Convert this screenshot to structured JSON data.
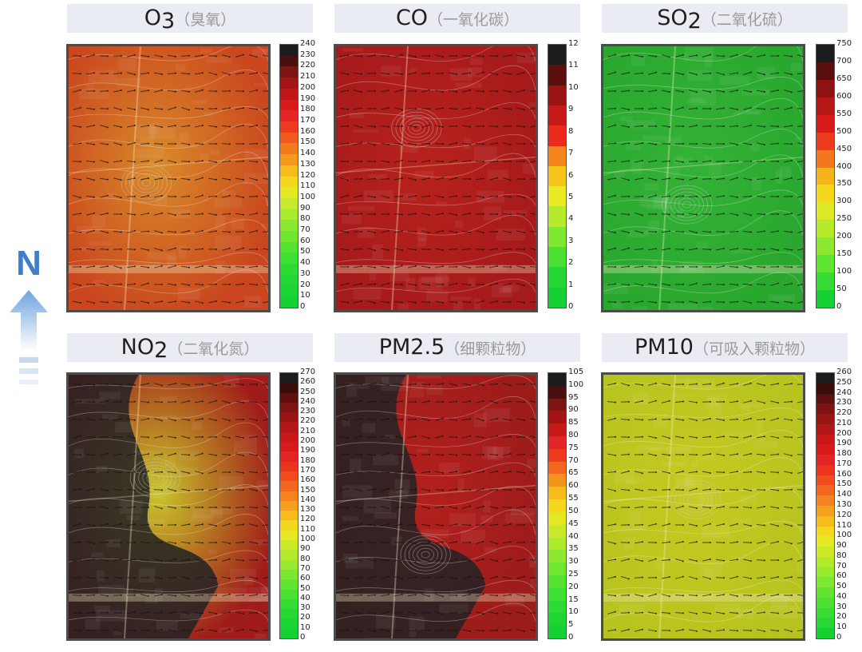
{
  "compass": {
    "label": "N",
    "icon": "north-arrow-icon"
  },
  "panels": [
    {
      "id": "o3",
      "title": {
        "main": "O",
        "sub_script": "3",
        "annotation": "（臭氧）"
      },
      "map": {
        "base_color": "#c9461e",
        "warm_spot": "#d98a2a",
        "dark_spot": "#3c3a3f"
      },
      "colorbar": {
        "ticks": [
          "240",
          "230",
          "220",
          "210",
          "200",
          "190",
          "180",
          "170",
          "160",
          "150",
          "140",
          "130",
          "120",
          "110",
          "100",
          "90",
          "80",
          "70",
          "60",
          "50",
          "40",
          "30",
          "20",
          "10",
          "0"
        ],
        "colors": [
          "#1c1c1c",
          "#4a0f0f",
          "#7c1414",
          "#a31515",
          "#bf1717",
          "#d91a1a",
          "#e52626",
          "#ee3a1f",
          "#f25a1e",
          "#f47a1d",
          "#f59a1c",
          "#f6bc1c",
          "#f3d81e",
          "#e5e823",
          "#c8ea2a",
          "#aaec2d",
          "#8ce930",
          "#70e631",
          "#55e332",
          "#3ee033",
          "#2cdb33",
          "#22d733",
          "#1ad434",
          "#14d234"
        ]
      }
    },
    {
      "id": "co",
      "title": {
        "main": "CO",
        "sub_script": "",
        "annotation": "（一氧化碳）"
      },
      "map": {
        "base_color": "#a51a1a",
        "warm_spot": "#b8221d",
        "dark_spot": "#3c3a3f"
      },
      "colorbar": {
        "ticks": [
          "12",
          "11",
          "10",
          "9",
          "8",
          "7",
          "6",
          "5",
          "4",
          "3",
          "2",
          "1",
          "0"
        ],
        "colors": [
          "#1c1c1c",
          "#5a0e0e",
          "#9a1414",
          "#c81919",
          "#ec2a1c",
          "#f4841c",
          "#f5c51c",
          "#e8ea23",
          "#b6ea2b",
          "#7fe831",
          "#4ce033",
          "#24d733",
          "#14d234"
        ]
      }
    },
    {
      "id": "so2",
      "title": {
        "main": "SO",
        "sub_script": "2",
        "annotation": "（二氧化硫）"
      },
      "map": {
        "base_color": "#2aa72e",
        "warm_spot": "#34b236",
        "dark_spot": "#3c4a3c"
      },
      "colorbar": {
        "ticks": [
          "750",
          "700",
          "650",
          "600",
          "550",
          "500",
          "450",
          "400",
          "350",
          "300",
          "250",
          "200",
          "150",
          "100",
          "50",
          "0"
        ],
        "colors": [
          "#1c1c1c",
          "#5a0e0e",
          "#8e1212",
          "#b81717",
          "#d91a1a",
          "#ee3a1f",
          "#f4761d",
          "#f5b31c",
          "#f3d81e",
          "#dde924",
          "#b6ea2b",
          "#8ce930",
          "#5ee432",
          "#35dc33",
          "#14d234"
        ]
      }
    },
    {
      "id": "no2",
      "title": {
        "main": "NO",
        "sub_script": "2",
        "annotation": "（二氧化氮）"
      },
      "map": {
        "base_color": "#a01c1a",
        "warm_spot": "#c8c52a",
        "dark_spot": "#222224"
      },
      "colorbar": {
        "ticks": [
          "270",
          "260",
          "250",
          "240",
          "230",
          "220",
          "210",
          "200",
          "190",
          "180",
          "170",
          "160",
          "150",
          "140",
          "130",
          "120",
          "110",
          "100",
          "90",
          "80",
          "70",
          "60",
          "50",
          "40",
          "30",
          "20",
          "10",
          "0"
        ],
        "colors": [
          "#1c1c1c",
          "#3a0d0d",
          "#5e1010",
          "#7c1414",
          "#9a1414",
          "#b21616",
          "#c81818",
          "#d91a1a",
          "#e42424",
          "#ec331f",
          "#f04c1e",
          "#f3661d",
          "#f4821d",
          "#f59f1c",
          "#f6bc1c",
          "#f3d81e",
          "#e5e823",
          "#cdea29",
          "#b3ea2c",
          "#98ea2f",
          "#7ee731",
          "#64e432",
          "#4ce033",
          "#36dc33",
          "#26d833",
          "#1bd534",
          "#14d234"
        ]
      }
    },
    {
      "id": "pm25",
      "title": {
        "main": "PM2.5",
        "sub_script": "",
        "annotation": "（细颗粒物）"
      },
      "map": {
        "base_color": "#9c1c1a",
        "warm_spot": "#b3201d",
        "dark_spot": "#222224"
      },
      "colorbar": {
        "ticks": [
          "105",
          "100",
          "95",
          "90",
          "85",
          "80",
          "75",
          "70",
          "65",
          "60",
          "55",
          "50",
          "45",
          "40",
          "35",
          "30",
          "25",
          "20",
          "15",
          "10",
          "5",
          "0"
        ],
        "colors": [
          "#1c1c1c",
          "#4a0f0f",
          "#7c1414",
          "#a31515",
          "#c81919",
          "#e52626",
          "#ee3a1f",
          "#f4661d",
          "#f5941c",
          "#f6bc1c",
          "#f3d81e",
          "#e2e823",
          "#c8ea2a",
          "#aaec2d",
          "#8ce930",
          "#70e631",
          "#55e332",
          "#3ee033",
          "#2adb33",
          "#1cd634",
          "#14d234"
        ]
      }
    },
    {
      "id": "pm10",
      "title": {
        "main": "PM10",
        "sub_script": "",
        "annotation": "（可吸入颗粒物）"
      },
      "map": {
        "base_color": "#b7c41f",
        "warm_spot": "#c8c820",
        "dark_spot": "#5b6a2a"
      },
      "colorbar": {
        "ticks": [
          "260",
          "250",
          "240",
          "230",
          "220",
          "210",
          "200",
          "190",
          "180",
          "170",
          "160",
          "150",
          "140",
          "130",
          "120",
          "110",
          "100",
          "90",
          "80",
          "70",
          "60",
          "50",
          "40",
          "30",
          "20",
          "10",
          "0"
        ],
        "colors": [
          "#1c1c1c",
          "#3a0d0d",
          "#5e1010",
          "#7c1414",
          "#9a1414",
          "#b21616",
          "#c81818",
          "#d91a1a",
          "#e42424",
          "#ec331f",
          "#f04c1e",
          "#f3661d",
          "#f4821d",
          "#f59f1c",
          "#f6bc1c",
          "#f3d81e",
          "#e5e823",
          "#cdea29",
          "#b3ea2c",
          "#98ea2f",
          "#7ee731",
          "#64e432",
          "#4ce033",
          "#36dc33",
          "#26d833",
          "#14d234"
        ]
      }
    }
  ]
}
